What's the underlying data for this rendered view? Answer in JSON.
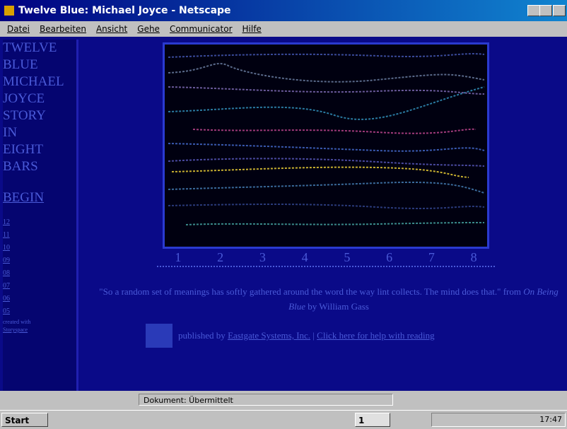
{
  "window": {
    "title": "Twelve Blue: Michael Joyce - Netscape"
  },
  "menu": [
    "Datei",
    "Bearbeiten",
    "Ansicht",
    "Gehe",
    "Communicator",
    "Hilfe"
  ],
  "sidebar": {
    "title_lines": [
      "TWELVE",
      "BLUE",
      "MICHAEL",
      "JOYCE",
      "STORY",
      "IN",
      "EIGHT",
      "BARS"
    ],
    "begin": "BEGIN",
    "numbers": [
      "12",
      "11",
      "10",
      "09",
      "08",
      "07",
      "06",
      "05"
    ],
    "created": "created with",
    "tool": "Storyspace"
  },
  "bars": [
    "1",
    "2",
    "3",
    "4",
    "5",
    "6",
    "7",
    "8"
  ],
  "quote": {
    "text": "\"So a random set of meanings has softly gathered around the word the way lint collects. The mind does that.\" from ",
    "book": "On Being Blue",
    "author": " by William Gass"
  },
  "footer": {
    "prefix": "published by ",
    "publisher": "Eastgate Systems, Inc.",
    "separator": " | ",
    "help": "Click here for help with reading"
  },
  "status": "Dokument: Übermittelt",
  "taskbar": {
    "start": "Start",
    "task": "1",
    "clock": "17:47"
  }
}
